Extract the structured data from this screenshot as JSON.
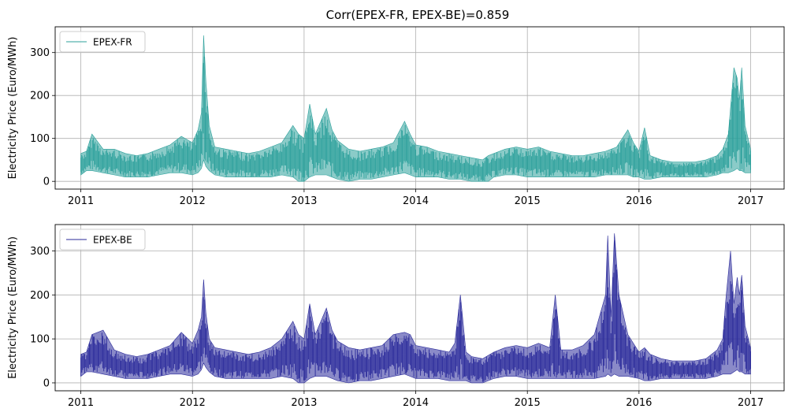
{
  "chart_data": [
    {
      "type": "line",
      "title": "Corr(EPEX-FR, EPEX-BE)=0.859",
      "xlabel": "",
      "ylabel": "Electricity Price (Euro/MWh)",
      "xlim": [
        2010.77,
        2017.3
      ],
      "ylim": [
        -18,
        360
      ],
      "x_ticks": [
        "2011",
        "2012",
        "2013",
        "2014",
        "2015",
        "2016",
        "2017"
      ],
      "y_ticks": [
        "0",
        "100",
        "200",
        "300"
      ],
      "grid": true,
      "legend": "top-left",
      "series": [
        {
          "name": "EPEX-FR",
          "color": "#2ca09b",
          "envelope": [
            [
              2011.0,
              15,
              65
            ],
            [
              2011.05,
              25,
              70
            ],
            [
              2011.1,
              25,
              110
            ],
            [
              2011.2,
              20,
              75
            ],
            [
              2011.3,
              15,
              75
            ],
            [
              2011.4,
              10,
              65
            ],
            [
              2011.5,
              10,
              60
            ],
            [
              2011.6,
              10,
              65
            ],
            [
              2011.7,
              15,
              75
            ],
            [
              2011.8,
              20,
              85
            ],
            [
              2011.9,
              20,
              105
            ],
            [
              2012.0,
              15,
              90
            ],
            [
              2012.05,
              20,
              120
            ],
            [
              2012.08,
              30,
              160
            ],
            [
              2012.1,
              50,
              340
            ],
            [
              2012.12,
              35,
              235
            ],
            [
              2012.15,
              25,
              130
            ],
            [
              2012.2,
              15,
              80
            ],
            [
              2012.3,
              10,
              75
            ],
            [
              2012.4,
              10,
              70
            ],
            [
              2012.5,
              10,
              65
            ],
            [
              2012.6,
              10,
              70
            ],
            [
              2012.7,
              10,
              80
            ],
            [
              2012.8,
              15,
              90
            ],
            [
              2012.9,
              10,
              130
            ],
            [
              2012.95,
              0,
              110
            ],
            [
              2013.0,
              0,
              100
            ],
            [
              2013.05,
              10,
              180
            ],
            [
              2013.1,
              15,
              110
            ],
            [
              2013.2,
              15,
              170
            ],
            [
              2013.25,
              10,
              120
            ],
            [
              2013.3,
              5,
              95
            ],
            [
              2013.4,
              0,
              75
            ],
            [
              2013.5,
              5,
              70
            ],
            [
              2013.6,
              5,
              75
            ],
            [
              2013.7,
              10,
              80
            ],
            [
              2013.8,
              15,
              90
            ],
            [
              2013.9,
              20,
              140
            ],
            [
              2013.95,
              15,
              110
            ],
            [
              2014.0,
              10,
              85
            ],
            [
              2014.1,
              10,
              80
            ],
            [
              2014.2,
              10,
              70
            ],
            [
              2014.3,
              5,
              65
            ],
            [
              2014.4,
              5,
              60
            ],
            [
              2014.5,
              0,
              55
            ],
            [
              2014.6,
              0,
              50
            ],
            [
              2014.65,
              0,
              60
            ],
            [
              2014.7,
              10,
              65
            ],
            [
              2014.8,
              15,
              75
            ],
            [
              2014.9,
              15,
              80
            ],
            [
              2015.0,
              10,
              75
            ],
            [
              2015.1,
              10,
              80
            ],
            [
              2015.2,
              10,
              70
            ],
            [
              2015.3,
              10,
              65
            ],
            [
              2015.4,
              10,
              60
            ],
            [
              2015.5,
              10,
              60
            ],
            [
              2015.6,
              10,
              65
            ],
            [
              2015.7,
              15,
              70
            ],
            [
              2015.8,
              15,
              80
            ],
            [
              2015.9,
              15,
              120
            ],
            [
              2015.95,
              10,
              90
            ],
            [
              2016.0,
              10,
              70
            ],
            [
              2016.05,
              5,
              125
            ],
            [
              2016.1,
              5,
              60
            ],
            [
              2016.2,
              10,
              50
            ],
            [
              2016.3,
              10,
              45
            ],
            [
              2016.4,
              10,
              45
            ],
            [
              2016.5,
              10,
              45
            ],
            [
              2016.6,
              10,
              50
            ],
            [
              2016.7,
              15,
              60
            ],
            [
              2016.75,
              20,
              75
            ],
            [
              2016.8,
              20,
              110
            ],
            [
              2016.85,
              25,
              265
            ],
            [
              2016.88,
              30,
              240
            ],
            [
              2016.9,
              25,
              190
            ],
            [
              2016.92,
              25,
              265
            ],
            [
              2016.95,
              20,
              130
            ],
            [
              2017.0,
              20,
              75
            ]
          ]
        },
        {
          "name": "EPEX-BE",
          "color": "#2a2a9a",
          "envelope": [
            [
              2011.0,
              15,
              65
            ],
            [
              2011.05,
              25,
              70
            ],
            [
              2011.1,
              25,
              110
            ],
            [
              2011.2,
              20,
              120
            ],
            [
              2011.3,
              15,
              75
            ],
            [
              2011.4,
              10,
              65
            ],
            [
              2011.5,
              10,
              60
            ],
            [
              2011.6,
              10,
              65
            ],
            [
              2011.7,
              15,
              75
            ],
            [
              2011.8,
              20,
              85
            ],
            [
              2011.9,
              20,
              115
            ],
            [
              2012.0,
              15,
              90
            ],
            [
              2012.05,
              20,
              120
            ],
            [
              2012.08,
              30,
              150
            ],
            [
              2012.1,
              45,
              235
            ],
            [
              2012.12,
              35,
              160
            ],
            [
              2012.15,
              25,
              100
            ],
            [
              2012.2,
              15,
              80
            ],
            [
              2012.3,
              10,
              75
            ],
            [
              2012.4,
              10,
              70
            ],
            [
              2012.5,
              10,
              65
            ],
            [
              2012.6,
              10,
              70
            ],
            [
              2012.7,
              10,
              80
            ],
            [
              2012.8,
              15,
              100
            ],
            [
              2012.9,
              10,
              140
            ],
            [
              2012.95,
              0,
              110
            ],
            [
              2013.0,
              0,
              100
            ],
            [
              2013.05,
              10,
              180
            ],
            [
              2013.1,
              15,
              110
            ],
            [
              2013.2,
              15,
              170
            ],
            [
              2013.25,
              10,
              120
            ],
            [
              2013.3,
              5,
              95
            ],
            [
              2013.4,
              0,
              80
            ],
            [
              2013.5,
              5,
              75
            ],
            [
              2013.6,
              5,
              80
            ],
            [
              2013.7,
              10,
              85
            ],
            [
              2013.8,
              15,
              110
            ],
            [
              2013.9,
              20,
              115
            ],
            [
              2013.95,
              15,
              110
            ],
            [
              2014.0,
              10,
              85
            ],
            [
              2014.1,
              10,
              80
            ],
            [
              2014.2,
              10,
              75
            ],
            [
              2014.3,
              5,
              70
            ],
            [
              2014.35,
              5,
              90
            ],
            [
              2014.4,
              5,
              200
            ],
            [
              2014.45,
              5,
              70
            ],
            [
              2014.5,
              0,
              60
            ],
            [
              2014.6,
              0,
              55
            ],
            [
              2014.7,
              10,
              70
            ],
            [
              2014.8,
              15,
              80
            ],
            [
              2014.9,
              15,
              85
            ],
            [
              2015.0,
              10,
              80
            ],
            [
              2015.1,
              10,
              90
            ],
            [
              2015.2,
              10,
              80
            ],
            [
              2015.25,
              10,
              200
            ],
            [
              2015.3,
              10,
              75
            ],
            [
              2015.4,
              10,
              75
            ],
            [
              2015.5,
              10,
              85
            ],
            [
              2015.6,
              10,
              110
            ],
            [
              2015.7,
              15,
              200
            ],
            [
              2015.72,
              20,
              335
            ],
            [
              2015.75,
              15,
              150
            ],
            [
              2015.78,
              20,
              340
            ],
            [
              2015.82,
              15,
              200
            ],
            [
              2015.9,
              15,
              110
            ],
            [
              2016.0,
              10,
              70
            ],
            [
              2016.05,
              5,
              80
            ],
            [
              2016.1,
              5,
              65
            ],
            [
              2016.2,
              10,
              55
            ],
            [
              2016.3,
              10,
              50
            ],
            [
              2016.4,
              10,
              50
            ],
            [
              2016.5,
              10,
              50
            ],
            [
              2016.6,
              10,
              55
            ],
            [
              2016.7,
              15,
              75
            ],
            [
              2016.75,
              20,
              100
            ],
            [
              2016.78,
              20,
              195
            ],
            [
              2016.82,
              20,
              300
            ],
            [
              2016.85,
              25,
              180
            ],
            [
              2016.88,
              30,
              240
            ],
            [
              2016.9,
              25,
              200
            ],
            [
              2016.92,
              25,
              245
            ],
            [
              2016.95,
              20,
              130
            ],
            [
              2017.0,
              20,
              80
            ]
          ]
        }
      ]
    }
  ]
}
